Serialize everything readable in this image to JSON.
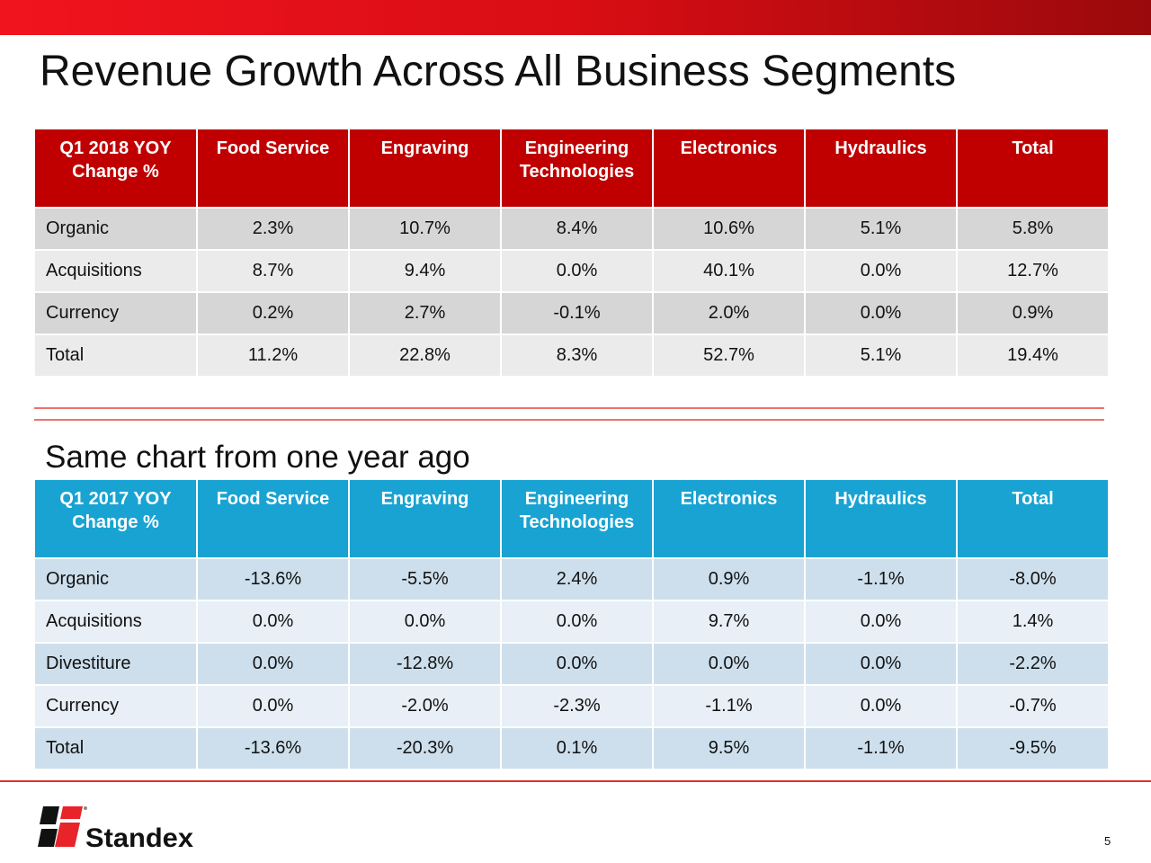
{
  "title": "Revenue Growth Across All Business Segments",
  "subtitle": "Same chart from one year ago",
  "colors": {
    "current_header": "#c00000",
    "prior_header": "#18a3d3",
    "brand_red": "#e8232a"
  },
  "table_current": {
    "headers": [
      "Q1 2018 YOY Change %",
      "Food Service",
      "Engraving",
      "Engineering Technologies",
      "Electronics",
      "Hydraulics",
      "Total"
    ],
    "rows": [
      [
        "Organic",
        "2.3%",
        "10.7%",
        "8.4%",
        "10.6%",
        "5.1%",
        "5.8%"
      ],
      [
        "Acquisitions",
        "8.7%",
        "9.4%",
        "0.0%",
        "40.1%",
        "0.0%",
        "12.7%"
      ],
      [
        "Currency",
        "0.2%",
        "2.7%",
        "-0.1%",
        "2.0%",
        "0.0%",
        "0.9%"
      ],
      [
        "Total",
        "11.2%",
        "22.8%",
        "8.3%",
        "52.7%",
        "5.1%",
        "19.4%"
      ]
    ]
  },
  "table_prior": {
    "headers": [
      "Q1 2017 YOY Change %",
      "Food Service",
      "Engraving",
      "Engineering Technologies",
      "Electronics",
      "Hydraulics",
      "Total"
    ],
    "rows": [
      [
        "Organic",
        "-13.6%",
        "-5.5%",
        "2.4%",
        "0.9%",
        "-1.1%",
        "-8.0%"
      ],
      [
        "Acquisitions",
        "0.0%",
        "0.0%",
        "0.0%",
        "9.7%",
        "0.0%",
        "1.4%"
      ],
      [
        "Divestiture",
        "0.0%",
        "-12.8%",
        "0.0%",
        "0.0%",
        "0.0%",
        "-2.2%"
      ],
      [
        "Currency",
        "0.0%",
        "-2.0%",
        "-2.3%",
        "-1.1%",
        "0.0%",
        "-0.7%"
      ],
      [
        "Total",
        "-13.6%",
        "-20.3%",
        "0.1%",
        "9.5%",
        "-1.1%",
        "-9.5%"
      ]
    ]
  },
  "logo": {
    "text": "Standex"
  },
  "page_number": "5"
}
